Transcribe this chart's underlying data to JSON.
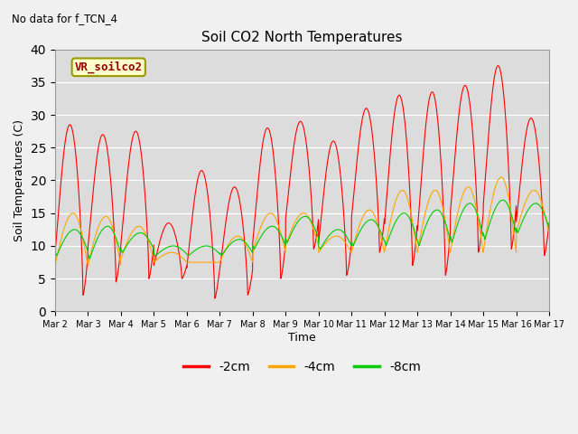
{
  "title": "Soil CO2 North Temperatures",
  "subtitle": "No data for f_TCN_4",
  "ylabel": "Soil Temperatures (C)",
  "xlabel": "Time",
  "legend_label": "VR_soilco2",
  "xlim": [
    0,
    15
  ],
  "ylim": [
    0,
    40
  ],
  "yticks": [
    0,
    5,
    10,
    15,
    20,
    25,
    30,
    35,
    40
  ],
  "xtick_labels": [
    "Mar 2",
    "Mar 3",
    "Mar 4",
    "Mar 5",
    "Mar 6",
    "Mar 7",
    "Mar 8",
    "Mar 9",
    "Mar 10",
    "Mar 11",
    "Mar 12",
    "Mar 13",
    "Mar 14",
    "Mar 15",
    "Mar 16",
    "Mar 17"
  ],
  "xtick_positions": [
    0,
    1,
    2,
    3,
    4,
    5,
    6,
    7,
    8,
    9,
    10,
    11,
    12,
    13,
    14,
    15
  ],
  "colors": {
    "red": "#ff0000",
    "orange": "#ffa500",
    "green": "#00cc00",
    "bg": "#dcdcdc"
  },
  "legend_items": [
    "-2cm",
    "-4cm",
    "-8cm"
  ],
  "legend_colors": [
    "#ff0000",
    "#ffa500",
    "#00cc00"
  ],
  "red_peaks": [
    28.5,
    27.0,
    27.5,
    13.5,
    21.5,
    19.0,
    28.0,
    29.0,
    26.0,
    31.0,
    33.0,
    33.5,
    34.5,
    37.5,
    29.5
  ],
  "red_troughs": [
    2.5,
    4.5,
    5.0,
    5.0,
    2.0,
    2.5,
    5.0,
    9.5,
    5.5,
    9.0,
    7.0,
    5.5,
    9.0,
    9.5,
    8.5
  ],
  "red_peak_phase": 0.45,
  "red_trough_phase": 0.85,
  "orange_peaks": [
    15.0,
    14.5,
    13.0,
    9.0,
    7.5,
    11.5,
    15.0,
    15.0,
    11.5,
    15.5,
    18.5,
    18.5,
    19.0,
    20.5,
    18.5
  ],
  "orange_troughs": [
    7.0,
    7.0,
    8.0,
    7.5,
    7.5,
    7.5,
    9.0,
    10.0,
    9.0,
    9.0,
    9.0,
    9.0,
    9.0,
    9.0,
    12.0
  ],
  "orange_peak_phase": 0.55,
  "orange_trough_phase": 0.0,
  "green_peaks": [
    12.5,
    13.0,
    12.0,
    10.0,
    10.0,
    11.0,
    13.0,
    14.5,
    12.5,
    14.0,
    15.0,
    15.5,
    16.5,
    17.0,
    16.5
  ],
  "green_troughs": [
    8.5,
    8.0,
    9.0,
    8.5,
    8.5,
    8.5,
    9.5,
    10.5,
    9.5,
    10.0,
    10.0,
    10.0,
    10.5,
    11.0,
    12.0
  ],
  "green_peak_phase": 0.6,
  "green_trough_phase": 0.05,
  "n_days": 15,
  "pts_per_day": 200
}
